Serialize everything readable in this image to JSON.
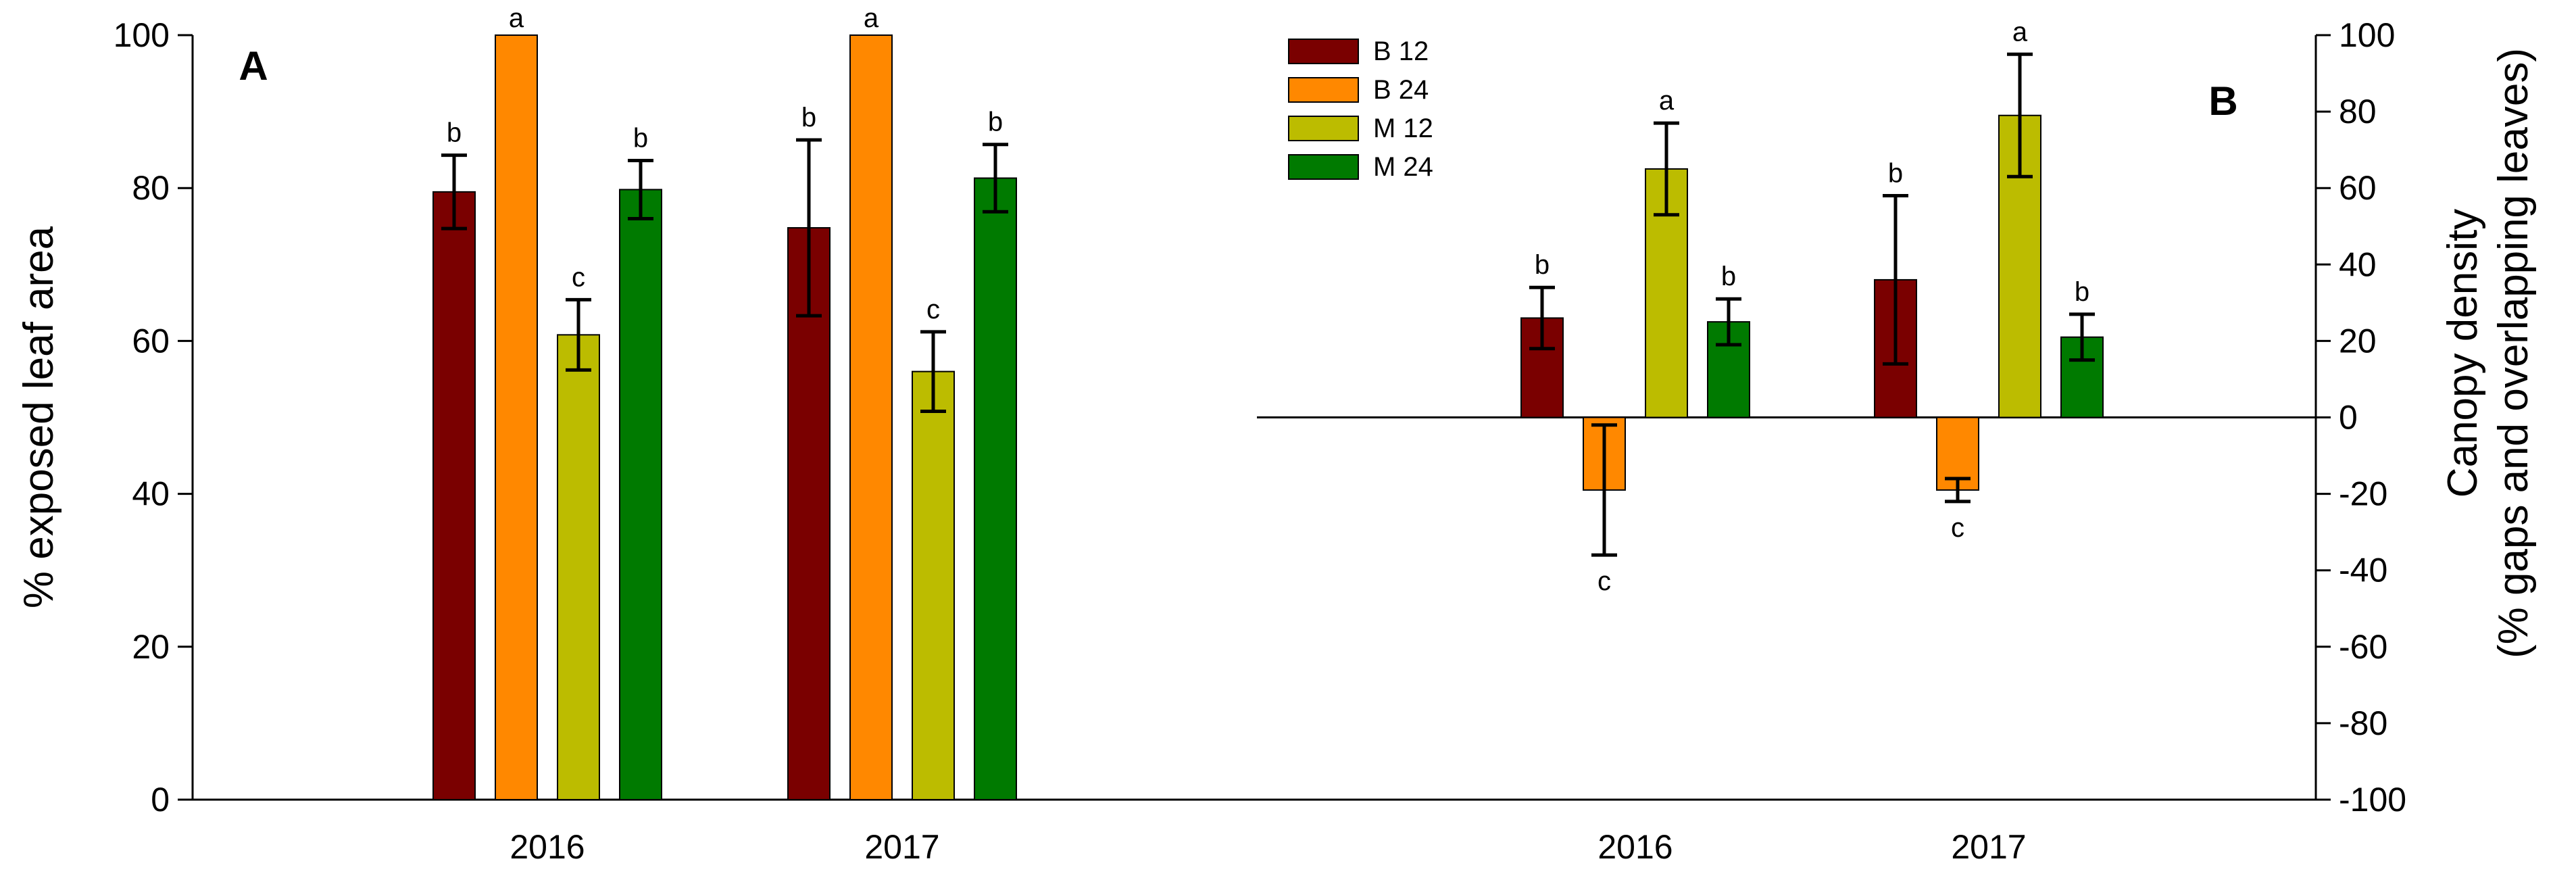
{
  "chart_data": [
    {
      "panel": "A",
      "type": "bar",
      "categories": [
        "2016",
        "2017"
      ],
      "ylabel": "% exposed leaf area",
      "ylim": [
        0,
        100
      ],
      "yticks": [
        0,
        20,
        40,
        60,
        80,
        100
      ],
      "grid": false,
      "series": [
        {
          "name": "B 12",
          "values": [
            79.5,
            74.8
          ],
          "errors": [
            4.8,
            11.5
          ],
          "letters": [
            "b",
            "b"
          ]
        },
        {
          "name": "B 24",
          "values": [
            100,
            100
          ],
          "errors": [
            0,
            0
          ],
          "letters": [
            "a",
            "a"
          ]
        },
        {
          "name": "M 12",
          "values": [
            60.8,
            56.0
          ],
          "errors": [
            4.6,
            5.2
          ],
          "letters": [
            "c",
            "c"
          ]
        },
        {
          "name": "M 24",
          "values": [
            79.8,
            81.3
          ],
          "errors": [
            3.8,
            4.4
          ],
          "letters": [
            "b",
            "b"
          ]
        }
      ]
    },
    {
      "panel": "B",
      "type": "bar",
      "categories": [
        "2016",
        "2017"
      ],
      "ylabel_lines": [
        "Canopy density",
        "(% gaps and overlapping leaves)"
      ],
      "ylim": [
        -100,
        100
      ],
      "yticks": [
        -100,
        -80,
        -60,
        -40,
        -20,
        0,
        20,
        40,
        60,
        80,
        100
      ],
      "y_axis_side": "right",
      "zero_line": true,
      "grid": false,
      "legend": "top-left",
      "series": [
        {
          "name": "B 12",
          "values": [
            26,
            36
          ],
          "errors": [
            8,
            22
          ],
          "letters": [
            "b",
            "b"
          ]
        },
        {
          "name": "B 24",
          "values": [
            -19,
            -19
          ],
          "errors": [
            17,
            3
          ],
          "letters": [
            "c",
            "c"
          ]
        },
        {
          "name": "M 12",
          "values": [
            65,
            79
          ],
          "errors": [
            12,
            16
          ],
          "letters": [
            "a",
            "a"
          ]
        },
        {
          "name": "M 24",
          "values": [
            25,
            21
          ],
          "errors": [
            6,
            6
          ],
          "letters": [
            "b",
            "b"
          ]
        }
      ]
    }
  ],
  "colors": {
    "B 12": "#7a0000",
    "B 24": "#ff8800",
    "M 12": "#bcbc00",
    "M 24": "#007a00"
  }
}
